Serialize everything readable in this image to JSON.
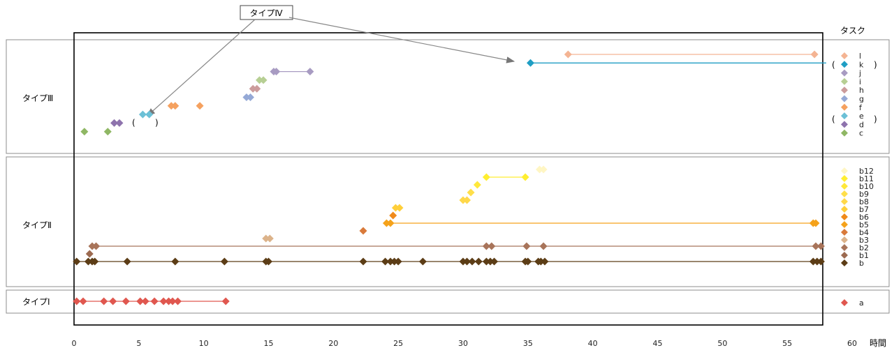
{
  "chart_data": {
    "type": "scatter",
    "xlabel": "時間",
    "x_ticks": [
      0,
      5,
      10,
      15,
      20,
      25,
      30,
      35,
      40,
      45,
      50,
      55,
      60
    ],
    "xlim": [
      0,
      60
    ],
    "legend_title": "タスク",
    "bands": [
      {
        "label": "タイプⅢ"
      },
      {
        "label": "タイプⅡ"
      },
      {
        "label": "タイプⅠ"
      }
    ],
    "callout_label": "タイプⅣ",
    "paren_open": "(",
    "paren_close": ")",
    "series": [
      {
        "name": "l",
        "color": "#f4b493",
        "band": 0,
        "points": [
          38.1,
          57.1
        ],
        "line": [
          38.1,
          57.1
        ]
      },
      {
        "name": "k",
        "color": "#1f9ec4",
        "band": 0,
        "points": [
          35.2
        ],
        "line": [
          35.2,
          58.0
        ]
      },
      {
        "name": "j",
        "color": "#a89bc2",
        "band": 0,
        "points": [
          15.4,
          15.6,
          18.2
        ],
        "line": [
          15.5,
          18.2
        ]
      },
      {
        "name": "i",
        "color": "#b7cf94",
        "band": 0,
        "points": [
          14.3,
          14.6
        ]
      },
      {
        "name": "h",
        "color": "#cc9c9c",
        "band": 0,
        "points": [
          13.8,
          14.1
        ]
      },
      {
        "name": "g",
        "color": "#95a9d6",
        "band": 0,
        "points": [
          13.3,
          13.6
        ]
      },
      {
        "name": "f",
        "color": "#f5a15f",
        "band": 0,
        "points": [
          7.5,
          7.8,
          9.7
        ]
      },
      {
        "name": "e",
        "color": "#6cc0d6",
        "band": 0,
        "points": [
          5.3,
          5.8
        ]
      },
      {
        "name": "d",
        "color": "#8e73ad",
        "band": 0,
        "points": [
          3.1,
          3.5
        ]
      },
      {
        "name": "c",
        "color": "#8fb764",
        "band": 0,
        "points": [
          0.8,
          2.6
        ]
      },
      {
        "name": "b12",
        "color": "#fff6c4",
        "band": 1,
        "points": [
          35.9,
          36.2
        ]
      },
      {
        "name": "b11",
        "color": "#ffee30",
        "band": 1,
        "points": [
          31.8,
          34.8
        ],
        "line": [
          31.8,
          34.8
        ]
      },
      {
        "name": "b10",
        "color": "#ffe83a",
        "band": 1,
        "points": [
          31.1
        ]
      },
      {
        "name": "b9",
        "color": "#ffdf4a",
        "band": 1,
        "points": [
          30.6
        ]
      },
      {
        "name": "b8",
        "color": "#ffd84a",
        "band": 1,
        "points": [
          30.0,
          30.3
        ]
      },
      {
        "name": "b7",
        "color": "#ffcf3a",
        "band": 1,
        "points": [
          24.8,
          25.1
        ]
      },
      {
        "name": "b6",
        "color": "#f08a1a",
        "band": 1,
        "points": [
          24.6
        ]
      },
      {
        "name": "b5",
        "color": "#f5a21a",
        "band": 1,
        "points": [
          24.1,
          24.4,
          57.0,
          57.2
        ],
        "line": [
          24.3,
          57.1
        ]
      },
      {
        "name": "b4",
        "color": "#d97a3a",
        "band": 1,
        "points": [
          22.3
        ]
      },
      {
        "name": "b3",
        "color": "#dcb38a",
        "band": 1,
        "points": [
          14.8,
          15.1
        ]
      },
      {
        "name": "b2",
        "color": "#a8745a",
        "band": 1,
        "points": [
          1.4,
          1.7,
          31.8,
          32.2,
          34.9,
          36.2,
          57.2,
          57.6
        ],
        "line": [
          1.5,
          57.4
        ]
      },
      {
        "name": "b1",
        "color": "#9c6a50",
        "band": 1,
        "points": [
          1.2
        ]
      },
      {
        "name": "b",
        "color": "#5c3d16",
        "band": 1,
        "points": [
          0.2,
          1.1,
          1.4,
          1.6,
          4.1,
          7.8,
          11.6,
          14.8,
          15.0,
          22.3,
          24.0,
          24.4,
          24.7,
          25.0,
          26.9,
          30.0,
          30.3,
          30.7,
          31.2,
          31.8,
          32.1,
          32.4,
          34.8,
          35.0,
          35.8,
          36.0,
          36.3,
          57.0,
          57.3,
          57.6
        ],
        "line": [
          0.2,
          57.6
        ]
      },
      {
        "name": "a",
        "color": "#e0574f",
        "band": 2,
        "points": [
          0.2,
          0.7,
          2.3,
          3.0,
          4.0,
          5.1,
          5.5,
          6.2,
          6.9,
          7.3,
          7.6,
          8.0,
          11.7
        ],
        "line": [
          0.2,
          11.7
        ]
      }
    ]
  }
}
